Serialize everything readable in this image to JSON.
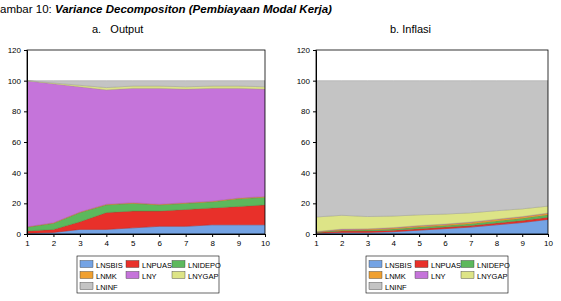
{
  "title": "ambar 10: Variance Decompositon (Pembiayaan Modal Kerja)",
  "chart_data": [
    {
      "type": "area",
      "subtitle": "a.   Output",
      "stacked": true,
      "legend": "bottom",
      "grid": false,
      "x": [
        1,
        2,
        3,
        4,
        5,
        6,
        7,
        8,
        9,
        10
      ],
      "xlim": [
        1,
        10
      ],
      "xticks": [
        1,
        2,
        3,
        4,
        5,
        6,
        7,
        8,
        9,
        10
      ],
      "ylim": [
        0,
        120
      ],
      "yticks": [
        0,
        20,
        40,
        60,
        80,
        100,
        120
      ],
      "series": [
        {
          "name": "LNSBIS",
          "color": "#74a3e4",
          "values": [
            0.5,
            1,
            3,
            3,
            4,
            5,
            5,
            6,
            6,
            6
          ]
        },
        {
          "name": "LNPUAS",
          "color": "#e8302a",
          "values": [
            1.5,
            2,
            5,
            11,
            11,
            10,
            11,
            11,
            12,
            13
          ]
        },
        {
          "name": "LNIDEPO",
          "color": "#5cb85c",
          "values": [
            2.5,
            4,
            6,
            5,
            5,
            4,
            4,
            4,
            5,
            5
          ]
        },
        {
          "name": "LNMK",
          "color": "#f0a030",
          "values": [
            0.2,
            0.3,
            0.3,
            0.4,
            0.4,
            0.4,
            0.4,
            0.4,
            0.4,
            0.4
          ]
        },
        {
          "name": "LNY",
          "color": "#c574da",
          "values": [
            95.3,
            90.7,
            81.7,
            74.6,
            74.6,
            75.6,
            74.1,
            73.6,
            71.6,
            70.1
          ]
        },
        {
          "name": "LNYGAP",
          "color": "#dde487",
          "values": [
            0,
            0.5,
            1,
            1.5,
            1.5,
            1.5,
            1.5,
            1.5,
            1.5,
            1.5
          ]
        },
        {
          "name": "LNINF",
          "color": "#c4c4c4",
          "values": [
            0,
            1.5,
            3,
            4.5,
            3.5,
            3.5,
            4,
            3.5,
            3.5,
            4
          ]
        }
      ]
    },
    {
      "type": "area",
      "subtitle": "b. Inflasi",
      "stacked": true,
      "legend": "bottom",
      "grid": false,
      "x": [
        1,
        2,
        3,
        4,
        5,
        6,
        7,
        8,
        9,
        10
      ],
      "xlim": [
        1,
        10
      ],
      "xticks": [
        1,
        2,
        3,
        4,
        5,
        6,
        7,
        8,
        9,
        10
      ],
      "ylim": [
        0,
        120
      ],
      "yticks": [
        0,
        20,
        40,
        60,
        80,
        100,
        120
      ],
      "series": [
        {
          "name": "LNSBIS",
          "color": "#74a3e4",
          "values": [
            0.5,
            1,
            1,
            1.5,
            2.5,
            3.5,
            4.5,
            6,
            7.5,
            9.5
          ]
        },
        {
          "name": "LNPUAS",
          "color": "#e8302a",
          "values": [
            0.5,
            1,
            1,
            1,
            1,
            1,
            1,
            1.2,
            1.3,
            1.5
          ]
        },
        {
          "name": "LNIDEPO",
          "color": "#5cb85c",
          "values": [
            0.3,
            0.5,
            0.6,
            0.8,
            1,
            1,
            1.2,
            1.3,
            1.4,
            1.5
          ]
        },
        {
          "name": "LNMK",
          "color": "#f0a030",
          "values": [
            0.3,
            0.5,
            0.6,
            0.7,
            0.8,
            0.8,
            0.9,
            1,
            1,
            1
          ]
        },
        {
          "name": "LNY",
          "color": "#c574da",
          "values": [
            0,
            0.2,
            0.2,
            0.2,
            0.2,
            0.2,
            0.2,
            0.2,
            0.2,
            0.2
          ]
        },
        {
          "name": "LNYGAP",
          "color": "#dde487",
          "values": [
            9.5,
            9,
            8,
            7.5,
            7,
            6.5,
            6,
            5.5,
            5,
            4.5
          ]
        },
        {
          "name": "LNINF",
          "color": "#c4c4c4",
          "values": [
            88.9,
            87.8,
            88.6,
            88.3,
            87.5,
            87,
            86.2,
            84.8,
            83.6,
            81.8
          ]
        }
      ]
    }
  ]
}
